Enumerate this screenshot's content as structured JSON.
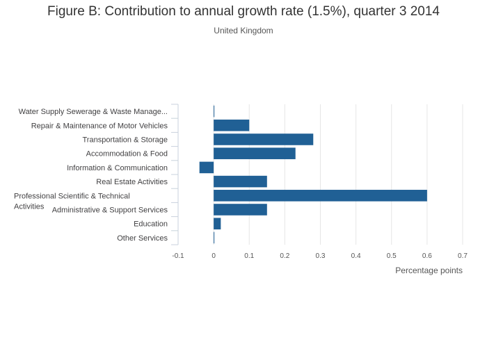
{
  "title": "Figure B: Contribution to annual growth rate (1.5%), quarter 3 2014",
  "subtitle": "United Kingdom",
  "chart_data": {
    "type": "bar",
    "orientation": "horizontal",
    "categories": [
      "Water Supply Sewerage & Waste Manage...",
      "Repair & Maintenance of Motor Vehicles",
      "Transportation & Storage",
      "Accommodation & Food",
      "Information & Communication",
      "Real Estate Activities",
      "Professional Scientific & Technical Activities",
      "Administrative & Support Services",
      "Education",
      "Other Services"
    ],
    "values": [
      0.0,
      0.1,
      0.28,
      0.23,
      -0.04,
      0.15,
      0.6,
      0.15,
      0.02,
      0.0
    ],
    "xlabel": "Percentage points",
    "ylabel": "",
    "xlim": [
      -0.1,
      0.7
    ],
    "xticks": [
      "-0.1",
      "0",
      "0.1",
      "0.2",
      "0.3",
      "0.4",
      "0.5",
      "0.6",
      "0.7"
    ],
    "grid": true,
    "bar_color": "#206095",
    "grid_color": "#e6e6e6"
  }
}
